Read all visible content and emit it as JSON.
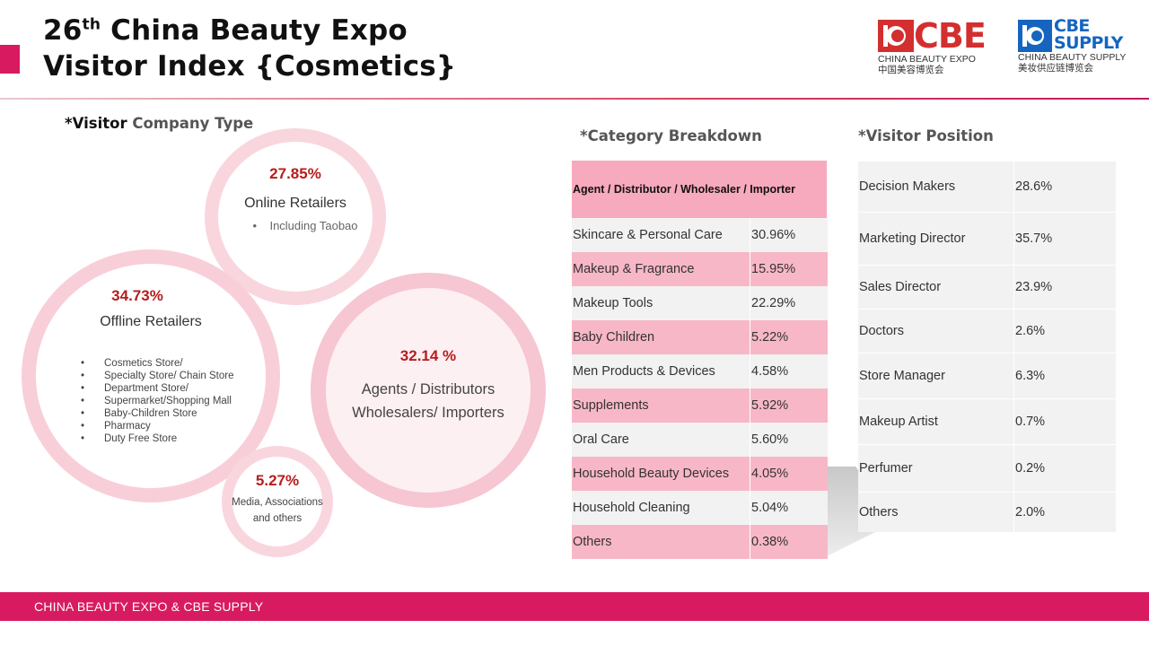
{
  "header": {
    "title_line1_pre": "26",
    "title_line1_sup": "th",
    "title_line1_post": " China Beauty Expo",
    "title_line2": "Visitor Index {Cosmetics}"
  },
  "logos": {
    "cbe": {
      "mark": "CBE",
      "en": "CHINA BEAUTY EXPO",
      "cn": "中国美容博览会",
      "color": "#d32f2f"
    },
    "supply": {
      "mark_line1": "CBE",
      "mark_line2": "SUPPLY",
      "en": "CHINA BEAUTY SUPPLY",
      "cn": "美妆供应链博览会",
      "color": "#1565c0"
    }
  },
  "company_type": {
    "heading_bold": "*Visitor",
    "heading_rest": " Company Type",
    "online": {
      "pct": "27.85%",
      "label": "Online Retailers",
      "bullet": "Including Taobao"
    },
    "offline": {
      "pct": "34.73%",
      "label": "Offline Retailers",
      "bullets": [
        "Cosmetics Store/",
        "Specialty Store/ Chain Store",
        "Department Store/",
        "Supermarket/Shopping Mall",
        "Baby-Children Store",
        "Pharmacy",
        "Duty Free Store"
      ]
    },
    "agents": {
      "pct": "32.14 %",
      "line1": "Agents / Distributors",
      "line2": "Wholesalers/ Importers"
    },
    "media": {
      "pct": "5.27%",
      "line1": "Media, Associations",
      "line2": "and others"
    }
  },
  "category": {
    "heading": "*Category Breakdown",
    "header": "Agent / Distributor / Wholesaler / Importer",
    "rows": [
      {
        "name": "Skincare & Personal Care",
        "value": "30.96%"
      },
      {
        "name": "Makeup & Fragrance",
        "value": "15.95%"
      },
      {
        "name": "Makeup Tools",
        "value": "22.29%"
      },
      {
        "name": "Baby Children",
        "value": "5.22%"
      },
      {
        "name": "Men Products & Devices",
        "value": "4.58%"
      },
      {
        "name": "Supplements",
        "value": "5.92%"
      },
      {
        "name": "Oral Care",
        "value": "5.60%"
      },
      {
        "name": "Household Beauty Devices",
        "value": "4.05%"
      },
      {
        "name": "Household Cleaning",
        "value": "5.04%"
      },
      {
        "name": "Others",
        "value": "0.38%"
      }
    ]
  },
  "position": {
    "heading": "*Visitor Position",
    "rows": [
      {
        "name": "Decision Makers",
        "value": "28.6%"
      },
      {
        "name": "Marketing Director",
        "value": "35.7%"
      },
      {
        "name": "Sales Director",
        "value": "23.9%"
      },
      {
        "name": "Doctors",
        "value": "2.6%"
      },
      {
        "name": "Store Manager",
        "value": "6.3%"
      },
      {
        "name": "Makeup Artist",
        "value": "0.7%"
      },
      {
        "name": "Perfumer",
        "value": "0.2%"
      },
      {
        "name": "Others",
        "value": "2.0%"
      }
    ]
  },
  "footer": {
    "text": "CHINA BEAUTY EXPO & CBE SUPPLY"
  },
  "colors": {
    "brand_pink": "#d81b60",
    "pct_red": "#b71c1c",
    "row_pink": "#f8b7c7",
    "row_grey": "#f2f2f2"
  },
  "chart_data": [
    {
      "type": "table",
      "title": "*Visitor Company Type",
      "categories": [
        "Online Retailers",
        "Offline Retailers",
        "Agents / Distributors Wholesalers/ Importers",
        "Media, Associations and others"
      ],
      "values": [
        27.85,
        34.73,
        32.14,
        5.27
      ]
    },
    {
      "type": "table",
      "title": "*Category Breakdown",
      "header": "Agent / Distributor / Wholesaler / Importer",
      "categories": [
        "Skincare & Personal Care",
        "Makeup & Fragrance",
        "Makeup Tools",
        "Baby Children",
        "Men Products & Devices",
        "Supplements",
        "Oral Care",
        "Household Beauty Devices",
        "Household Cleaning",
        "Others"
      ],
      "values": [
        30.96,
        15.95,
        22.29,
        5.22,
        4.58,
        5.92,
        5.6,
        4.05,
        5.04,
        0.38
      ]
    },
    {
      "type": "table",
      "title": "*Visitor Position",
      "categories": [
        "Decision Makers",
        "Marketing Director",
        "Sales Director",
        "Doctors",
        "Store Manager",
        "Makeup Artist",
        "Perfumer",
        "Others"
      ],
      "values": [
        28.6,
        35.7,
        23.9,
        2.6,
        6.3,
        0.7,
        0.2,
        2.0
      ]
    }
  ]
}
